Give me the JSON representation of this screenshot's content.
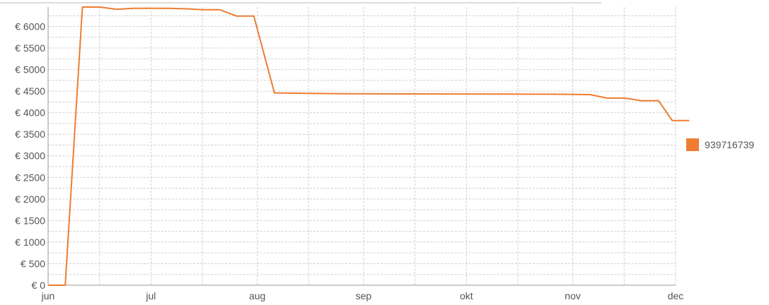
{
  "chart_data": {
    "type": "line",
    "title": "",
    "xlabel": "",
    "ylabel": "",
    "x_ticks": [
      "jun",
      "jul",
      "aug",
      "sep",
      "okt",
      "nov",
      "dec"
    ],
    "y_ticks": [
      "€ 0",
      "€ 500",
      "€ 1000",
      "€ 1500",
      "€ 2000",
      "€ 2500",
      "€ 3000",
      "€ 3500",
      "€ 4000",
      "€ 4500",
      "€ 5000",
      "€ 5500",
      "€ 6000"
    ],
    "ylim": [
      0,
      6450
    ],
    "xlim": [
      "2012-06-01",
      "2012-12-01"
    ],
    "grid": true,
    "legend_position": "right",
    "series": [
      {
        "name": "939716739",
        "color": "#ee7d31",
        "points": [
          [
            "2012-06-01",
            0
          ],
          [
            "2012-06-06",
            0
          ],
          [
            "2012-06-11",
            6450
          ],
          [
            "2012-06-16",
            6450
          ],
          [
            "2012-06-21",
            6400
          ],
          [
            "2012-06-26",
            6420
          ],
          [
            "2012-07-06",
            6420
          ],
          [
            "2012-07-11",
            6410
          ],
          [
            "2012-07-16",
            6390
          ],
          [
            "2012-07-21",
            6390
          ],
          [
            "2012-07-26",
            6240
          ],
          [
            "2012-07-31",
            6240
          ],
          [
            "2012-08-06",
            4460
          ],
          [
            "2012-08-16",
            4450
          ],
          [
            "2012-08-26",
            4440
          ],
          [
            "2012-10-26",
            4430
          ],
          [
            "2012-11-06",
            4420
          ],
          [
            "2012-11-11",
            4340
          ],
          [
            "2012-11-16",
            4340
          ],
          [
            "2012-11-21",
            4280
          ],
          [
            "2012-11-26",
            4280
          ],
          [
            "2012-11-30",
            3820
          ],
          [
            "2012-12-05",
            3820
          ]
        ]
      }
    ]
  }
}
